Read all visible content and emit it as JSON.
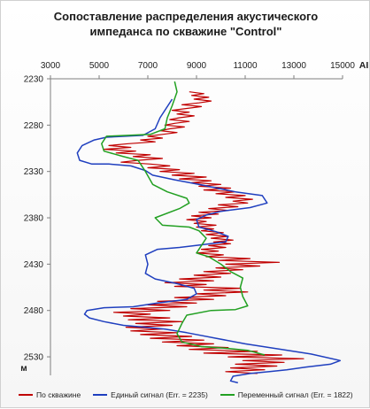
{
  "colors": {
    "red": "#c00000",
    "blue": "#1f3fbf",
    "green": "#22a022"
  },
  "chart_data": {
    "type": "line",
    "title_line1": "Сопоставление распределения акустического",
    "title_line2": "импеданса по скважине \"Control\"",
    "xlabel": "AI",
    "ylabel": "м",
    "xlim": [
      3000,
      15000
    ],
    "ylim": [
      2230,
      2550
    ],
    "y_inverted": true,
    "x_axis_position": "top",
    "grid": false,
    "legend_position": "bottom",
    "x_ticks": [
      "3000",
      "5000",
      "7000",
      "9000",
      "11000",
      "13000",
      "15000"
    ],
    "y_ticks": [
      "2230",
      "2280",
      "2330",
      "2380",
      "2430",
      "2480",
      "2530"
    ],
    "series": [
      {
        "name": "По скважине",
        "color": "#c00000",
        "points": [
          [
            8700,
            2244
          ],
          [
            9300,
            2246
          ],
          [
            8800,
            2248
          ],
          [
            9500,
            2250
          ],
          [
            8900,
            2252
          ],
          [
            9600,
            2254
          ],
          [
            9100,
            2256
          ],
          [
            8400,
            2258
          ],
          [
            9200,
            2260
          ],
          [
            8600,
            2262
          ],
          [
            8000,
            2264
          ],
          [
            8700,
            2266
          ],
          [
            8200,
            2268
          ],
          [
            8900,
            2270
          ],
          [
            8300,
            2272
          ],
          [
            7900,
            2274
          ],
          [
            8700,
            2276
          ],
          [
            8100,
            2278
          ],
          [
            7700,
            2280
          ],
          [
            8500,
            2282
          ],
          [
            7900,
            2284
          ],
          [
            7500,
            2286
          ],
          [
            8200,
            2288
          ],
          [
            7600,
            2290
          ],
          [
            7000,
            2292
          ],
          [
            7600,
            2294
          ],
          [
            6700,
            2296
          ],
          [
            7300,
            2298
          ],
          [
            6200,
            2300
          ],
          [
            5400,
            2302
          ],
          [
            6300,
            2304
          ],
          [
            5200,
            2306
          ],
          [
            6500,
            2308
          ],
          [
            5700,
            2310
          ],
          [
            7100,
            2312
          ],
          [
            6400,
            2314
          ],
          [
            7600,
            2316
          ],
          [
            6600,
            2318
          ],
          [
            5900,
            2320
          ],
          [
            7100,
            2322
          ],
          [
            7900,
            2324
          ],
          [
            7000,
            2326
          ],
          [
            8300,
            2328
          ],
          [
            7500,
            2330
          ],
          [
            8900,
            2332
          ],
          [
            8000,
            2334
          ],
          [
            9400,
            2336
          ],
          [
            8300,
            2338
          ],
          [
            9600,
            2340
          ],
          [
            8800,
            2342
          ],
          [
            10000,
            2344
          ],
          [
            9100,
            2346
          ],
          [
            10400,
            2348
          ],
          [
            9300,
            2350
          ],
          [
            10600,
            2352
          ],
          [
            9800,
            2354
          ],
          [
            11000,
            2356
          ],
          [
            10200,
            2358
          ],
          [
            11300,
            2360
          ],
          [
            10500,
            2362
          ],
          [
            11100,
            2364
          ],
          [
            9900,
            2366
          ],
          [
            10700,
            2368
          ],
          [
            9500,
            2370
          ],
          [
            10300,
            2372
          ],
          [
            9100,
            2374
          ],
          [
            9900,
            2376
          ],
          [
            8800,
            2378
          ],
          [
            9600,
            2380
          ],
          [
            8600,
            2382
          ],
          [
            9400,
            2384
          ],
          [
            8900,
            2386
          ],
          [
            9800,
            2388
          ],
          [
            9000,
            2390
          ],
          [
            9700,
            2392
          ],
          [
            9200,
            2394
          ],
          [
            10100,
            2396
          ],
          [
            9400,
            2398
          ],
          [
            10300,
            2400
          ],
          [
            9600,
            2402
          ],
          [
            10500,
            2404
          ],
          [
            9700,
            2406
          ],
          [
            10400,
            2408
          ],
          [
            9500,
            2410
          ],
          [
            10200,
            2412
          ],
          [
            9200,
            2414
          ],
          [
            9900,
            2416
          ],
          [
            9000,
            2418
          ],
          [
            10100,
            2420
          ],
          [
            9400,
            2422
          ],
          [
            11200,
            2424
          ],
          [
            9900,
            2426
          ],
          [
            12400,
            2428
          ],
          [
            10200,
            2430
          ],
          [
            11600,
            2432
          ],
          [
            9800,
            2434
          ],
          [
            10900,
            2436
          ],
          [
            9300,
            2438
          ],
          [
            10400,
            2440
          ],
          [
            8900,
            2442
          ],
          [
            10000,
            2444
          ],
          [
            8300,
            2446
          ],
          [
            9700,
            2448
          ],
          [
            7700,
            2450
          ],
          [
            9400,
            2452
          ],
          [
            8100,
            2454
          ],
          [
            10800,
            2456
          ],
          [
            9300,
            2458
          ],
          [
            11100,
            2460
          ],
          [
            9000,
            2462
          ],
          [
            10200,
            2464
          ],
          [
            8100,
            2466
          ],
          [
            9700,
            2468
          ],
          [
            7400,
            2470
          ],
          [
            9000,
            2472
          ],
          [
            7000,
            2474
          ],
          [
            8600,
            2476
          ],
          [
            6300,
            2478
          ],
          [
            7900,
            2480
          ],
          [
            5600,
            2482
          ],
          [
            7100,
            2484
          ],
          [
            6000,
            2486
          ],
          [
            7900,
            2488
          ],
          [
            6200,
            2490
          ],
          [
            8400,
            2492
          ],
          [
            6500,
            2494
          ],
          [
            8000,
            2496
          ],
          [
            6100,
            2498
          ],
          [
            7600,
            2500
          ],
          [
            6300,
            2502
          ],
          [
            8200,
            2504
          ],
          [
            6700,
            2506
          ],
          [
            8800,
            2508
          ],
          [
            7100,
            2510
          ],
          [
            9300,
            2512
          ],
          [
            7600,
            2514
          ],
          [
            9700,
            2516
          ],
          [
            8200,
            2518
          ],
          [
            10300,
            2520
          ],
          [
            8700,
            2522
          ],
          [
            11500,
            2524
          ],
          [
            9300,
            2526
          ],
          [
            12500,
            2528
          ],
          [
            10300,
            2530
          ],
          [
            13400,
            2532
          ],
          [
            10900,
            2534
          ],
          [
            12600,
            2536
          ],
          [
            10600,
            2538
          ],
          [
            12300,
            2540
          ],
          [
            10400,
            2542
          ],
          [
            11800,
            2544
          ],
          [
            10200,
            2546
          ],
          [
            11500,
            2548
          ]
        ]
      },
      {
        "name": "Единый сигнал (Err. = 2235)",
        "color": "#1f3fbf",
        "points": [
          [
            8000,
            2252
          ],
          [
            7500,
            2272
          ],
          [
            7300,
            2284
          ],
          [
            6800,
            2291
          ],
          [
            5300,
            2293
          ],
          [
            4800,
            2296
          ],
          [
            4300,
            2302
          ],
          [
            4100,
            2310
          ],
          [
            4200,
            2318
          ],
          [
            4700,
            2322
          ],
          [
            5400,
            2322
          ],
          [
            6300,
            2324
          ],
          [
            6900,
            2329
          ],
          [
            7200,
            2334
          ],
          [
            8100,
            2339
          ],
          [
            9300,
            2345
          ],
          [
            10600,
            2352
          ],
          [
            11700,
            2356
          ],
          [
            11900,
            2364
          ],
          [
            11200,
            2369
          ],
          [
            10000,
            2373
          ],
          [
            9400,
            2377
          ],
          [
            9000,
            2382
          ],
          [
            9100,
            2390
          ],
          [
            9800,
            2395
          ],
          [
            10300,
            2400
          ],
          [
            10200,
            2406
          ],
          [
            8300,
            2412
          ],
          [
            7400,
            2414
          ],
          [
            6900,
            2420
          ],
          [
            7000,
            2430
          ],
          [
            6900,
            2440
          ],
          [
            7300,
            2446
          ],
          [
            8200,
            2451
          ],
          [
            8900,
            2456
          ],
          [
            9000,
            2462
          ],
          [
            8600,
            2468
          ],
          [
            7400,
            2472
          ],
          [
            6400,
            2476
          ],
          [
            5200,
            2477
          ],
          [
            4500,
            2480
          ],
          [
            4400,
            2484
          ],
          [
            4600,
            2488
          ],
          [
            5200,
            2492
          ],
          [
            6000,
            2496
          ],
          [
            6900,
            2498
          ],
          [
            7700,
            2500
          ],
          [
            8600,
            2504
          ],
          [
            9800,
            2510
          ],
          [
            11000,
            2516
          ],
          [
            12500,
            2522
          ],
          [
            13700,
            2527
          ],
          [
            14900,
            2534
          ],
          [
            14500,
            2538
          ],
          [
            13500,
            2541
          ],
          [
            12700,
            2544
          ],
          [
            12000,
            2546
          ],
          [
            11200,
            2548
          ],
          [
            10500,
            2551
          ],
          [
            10400,
            2556
          ],
          [
            10700,
            2558
          ]
        ]
      },
      {
        "name": "Переменный сигнал (Err. = 1822)",
        "color": "#22a022",
        "points": [
          [
            8100,
            2233
          ],
          [
            8200,
            2244
          ],
          [
            8000,
            2259
          ],
          [
            7800,
            2272
          ],
          [
            7700,
            2284
          ],
          [
            7100,
            2290
          ],
          [
            6200,
            2291
          ],
          [
            5300,
            2292
          ],
          [
            5100,
            2300
          ],
          [
            5200,
            2308
          ],
          [
            6000,
            2314
          ],
          [
            6600,
            2318
          ],
          [
            6900,
            2330
          ],
          [
            7200,
            2344
          ],
          [
            7800,
            2352
          ],
          [
            8600,
            2359
          ],
          [
            8700,
            2364
          ],
          [
            8300,
            2370
          ],
          [
            7300,
            2380
          ],
          [
            7600,
            2388
          ],
          [
            8700,
            2390
          ],
          [
            9100,
            2394
          ],
          [
            9400,
            2402
          ],
          [
            9200,
            2410
          ],
          [
            9000,
            2418
          ],
          [
            9500,
            2422
          ],
          [
            10000,
            2430
          ],
          [
            10400,
            2438
          ],
          [
            10900,
            2445
          ],
          [
            10800,
            2455
          ],
          [
            10900,
            2465
          ],
          [
            11100,
            2475
          ],
          [
            10600,
            2479
          ],
          [
            9600,
            2480
          ],
          [
            8600,
            2485
          ],
          [
            8400,
            2494
          ],
          [
            8200,
            2505
          ],
          [
            8400,
            2514
          ],
          [
            9200,
            2519
          ],
          [
            10300,
            2521
          ],
          [
            11100,
            2523
          ],
          [
            11800,
            2528
          ]
        ]
      }
    ]
  }
}
